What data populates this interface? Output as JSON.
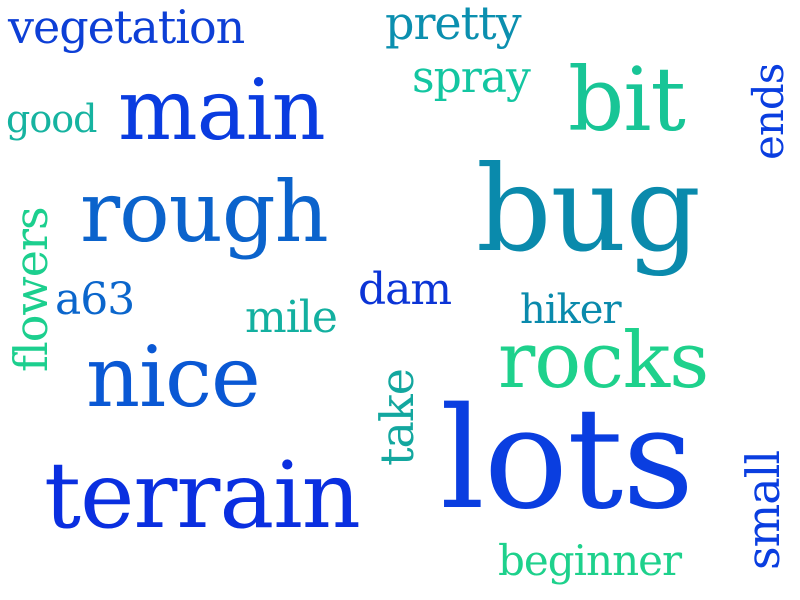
{
  "words": [
    {
      "key": "vegetation",
      "text": "vegetation",
      "color": "#0d3fd6",
      "orientation": "horizontal"
    },
    {
      "key": "pretty",
      "text": "pretty",
      "color": "#0b8faf",
      "orientation": "horizontal"
    },
    {
      "key": "spray",
      "text": "spray",
      "color": "#13c6a1",
      "orientation": "horizontal"
    },
    {
      "key": "main",
      "text": "main",
      "color": "#0a3ce0",
      "orientation": "horizontal"
    },
    {
      "key": "bit",
      "text": "bit",
      "color": "#18c596",
      "orientation": "horizontal"
    },
    {
      "key": "good",
      "text": "good",
      "color": "#16b3a0",
      "orientation": "horizontal"
    },
    {
      "key": "ends",
      "text": "ends",
      "color": "#0a3ee0",
      "orientation": "vertical"
    },
    {
      "key": "rough",
      "text": "rough",
      "color": "#0b63cc",
      "orientation": "horizontal"
    },
    {
      "key": "bug",
      "text": "bug",
      "color": "#0a8aac",
      "orientation": "horizontal"
    },
    {
      "key": "flowers",
      "text": "flowers",
      "color": "#1ccf8e",
      "orientation": "vertical"
    },
    {
      "key": "a63",
      "text": "a63",
      "color": "#0b66cc",
      "orientation": "horizontal"
    },
    {
      "key": "dam",
      "text": "dam",
      "color": "#0b34d6",
      "orientation": "horizontal"
    },
    {
      "key": "mile",
      "text": "mile",
      "color": "#13b0a0",
      "orientation": "horizontal"
    },
    {
      "key": "hiker",
      "text": "hiker",
      "color": "#0a8aac",
      "orientation": "horizontal"
    },
    {
      "key": "nice",
      "text": "nice",
      "color": "#0a58d4",
      "orientation": "horizontal"
    },
    {
      "key": "rocks",
      "text": "rocks",
      "color": "#1ed18c",
      "orientation": "horizontal"
    },
    {
      "key": "take",
      "text": "take",
      "color": "#13a79f",
      "orientation": "vertical"
    },
    {
      "key": "lots",
      "text": "lots",
      "color": "#0a3ee0",
      "orientation": "horizontal"
    },
    {
      "key": "small",
      "text": "small",
      "color": "#0a3ee0",
      "orientation": "vertical"
    },
    {
      "key": "terrain",
      "text": "terrain",
      "color": "#0a2fe0",
      "orientation": "horizontal"
    },
    {
      "key": "beginner",
      "text": "beginner",
      "color": "#1ed18c",
      "orientation": "horizontal"
    }
  ]
}
